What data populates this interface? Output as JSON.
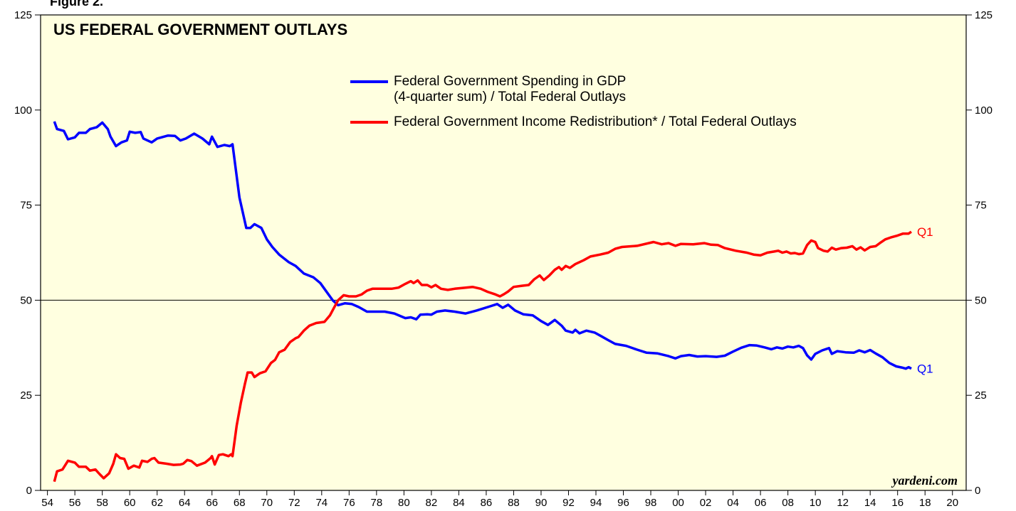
{
  "chart_data": {
    "type": "line",
    "figure_label": "Figure 2.",
    "title": "US FEDERAL GOVERNMENT OUTLAYS",
    "source": "yardeni.com",
    "xlim": [
      1953.5,
      2021
    ],
    "ylim": [
      0,
      125
    ],
    "yticks": [
      0,
      25,
      50,
      75,
      100,
      125
    ],
    "xticks": [
      {
        "value": 1954,
        "label": "54"
      },
      {
        "value": 1956,
        "label": "56"
      },
      {
        "value": 1958,
        "label": "58"
      },
      {
        "value": 1960,
        "label": "60"
      },
      {
        "value": 1962,
        "label": "62"
      },
      {
        "value": 1964,
        "label": "64"
      },
      {
        "value": 1966,
        "label": "66"
      },
      {
        "value": 1968,
        "label": "68"
      },
      {
        "value": 1970,
        "label": "70"
      },
      {
        "value": 1972,
        "label": "72"
      },
      {
        "value": 1974,
        "label": "74"
      },
      {
        "value": 1976,
        "label": "76"
      },
      {
        "value": 1978,
        "label": "78"
      },
      {
        "value": 1980,
        "label": "80"
      },
      {
        "value": 1982,
        "label": "82"
      },
      {
        "value": 1984,
        "label": "84"
      },
      {
        "value": 1986,
        "label": "86"
      },
      {
        "value": 1988,
        "label": "88"
      },
      {
        "value": 1990,
        "label": "90"
      },
      {
        "value": 1992,
        "label": "92"
      },
      {
        "value": 1994,
        "label": "94"
      },
      {
        "value": 1996,
        "label": "96"
      },
      {
        "value": 1998,
        "label": "98"
      },
      {
        "value": 2000,
        "label": "00"
      },
      {
        "value": 2002,
        "label": "02"
      },
      {
        "value": 2004,
        "label": "04"
      },
      {
        "value": 2006,
        "label": "06"
      },
      {
        "value": 2008,
        "label": "08"
      },
      {
        "value": 2010,
        "label": "10"
      },
      {
        "value": 2012,
        "label": "12"
      },
      {
        "value": 2014,
        "label": "14"
      },
      {
        "value": 2016,
        "label": "16"
      },
      {
        "value": 2018,
        "label": "18"
      },
      {
        "value": 2020,
        "label": "20"
      }
    ],
    "reference_line": 50,
    "background": "#ffffe0",
    "series": [
      {
        "name": "Federal Government Spending in GDP\n(4-quarter sum) / Total Federal Outlays",
        "color": "#0000ff",
        "end_label": "Q1",
        "x": [
          1954.5,
          1954.7,
          1955.2,
          1955.5,
          1956,
          1956.3,
          1956.8,
          1957.1,
          1957.6,
          1958,
          1958.4,
          1958.6,
          1959,
          1959.4,
          1959.8,
          1960,
          1960.4,
          1960.8,
          1961,
          1961.6,
          1962,
          1962.8,
          1963.3,
          1963.7,
          1964.1,
          1964.7,
          1965.3,
          1965.8,
          1966,
          1966.4,
          1966.9,
          1967.3,
          1967.5,
          1968,
          1968.5,
          1968.8,
          1969.1,
          1969.6,
          1970,
          1970.4,
          1970.9,
          1971.6,
          1972.1,
          1972.7,
          1973.4,
          1973.9,
          1974.4,
          1974.8,
          1975.2,
          1975.7,
          1976.2,
          1976.7,
          1977.3,
          1977.8,
          1978.6,
          1979.3,
          1980.1,
          1980.5,
          1980.9,
          1981.2,
          1981.7,
          1982,
          1982.4,
          1983,
          1983.7,
          1984.5,
          1985.3,
          1986.2,
          1986.8,
          1987.2,
          1987.6,
          1988.1,
          1988.7,
          1989.4,
          1990,
          1990.5,
          1991,
          1991.5,
          1991.8,
          1992.3,
          1992.5,
          1992.8,
          1993.3,
          1993.9,
          1994.4,
          1994.9,
          1995.4,
          1996.2,
          1997,
          1997.7,
          1998.5,
          1999.3,
          1999.8,
          2000.2,
          2000.8,
          2001.4,
          2002,
          2002.8,
          2003.4,
          2004,
          2004.6,
          2005.2,
          2005.7,
          2006.3,
          2006.8,
          2007.2,
          2007.6,
          2008,
          2008.4,
          2008.8,
          2009.1,
          2009.4,
          2009.7,
          2010,
          2010.5,
          2011,
          2011.2,
          2011.6,
          2012.2,
          2012.8,
          2013.2,
          2013.6,
          2014,
          2014.4,
          2014.9,
          2015.4,
          2015.9,
          2016.3,
          2016.6,
          2016.8,
          2017
        ],
        "values": [
          97,
          95,
          94.5,
          92.3,
          92.8,
          94,
          94,
          95,
          95.5,
          96.7,
          95,
          93,
          90.5,
          91.5,
          92,
          94.3,
          94,
          94.2,
          92.5,
          91.5,
          92.5,
          93.3,
          93.2,
          92,
          92.5,
          93.8,
          92.5,
          91,
          93,
          90.3,
          90.8,
          90.5,
          91,
          77,
          69,
          69,
          70,
          69,
          66,
          64,
          62,
          60,
          59,
          57,
          56,
          54.5,
          52,
          50,
          48.7,
          49.2,
          49,
          48.2,
          47,
          47,
          47,
          46.5,
          45.3,
          45.5,
          45,
          46.2,
          46.3,
          46.2,
          47,
          47.3,
          47,
          46.5,
          47.3,
          48.3,
          49,
          48,
          48.8,
          47.3,
          46.3,
          46,
          44.5,
          43.5,
          44.8,
          43.3,
          42,
          41.5,
          42.2,
          41.3,
          42,
          41.5,
          40.5,
          39.5,
          38.5,
          38,
          37,
          36.2,
          36,
          35.3,
          34.7,
          35.3,
          35.6,
          35.2,
          35.3,
          35.1,
          35.4,
          36.5,
          37.5,
          38.2,
          38.1,
          37.6,
          37.1,
          37.6,
          37.3,
          37.8,
          37.6,
          38,
          37.4,
          35.5,
          34.4,
          35.9,
          36.8,
          37.4,
          35.9,
          36.6,
          36.3,
          36.2,
          36.8,
          36.3,
          36.9,
          36,
          35,
          33.5,
          32.6,
          32.3,
          32,
          32.4,
          32
        ]
      },
      {
        "name": "Federal Government Income Redistribution* / Total Federal Outlays",
        "color": "#ff0000",
        "end_label": "Q1",
        "x": [
          1954.5,
          1954.7,
          1955.1,
          1955.5,
          1956,
          1956.3,
          1956.8,
          1957.1,
          1957.5,
          1957.8,
          1958.1,
          1958.5,
          1958.8,
          1959,
          1959.3,
          1959.6,
          1959.9,
          1960.3,
          1960.7,
          1960.9,
          1961.3,
          1961.6,
          1961.8,
          1962.1,
          1962.7,
          1963.2,
          1963.7,
          1963.9,
          1964.2,
          1964.5,
          1964.9,
          1965.5,
          1965.9,
          1966,
          1966.2,
          1966.5,
          1966.8,
          1967.2,
          1967.4,
          1967.5,
          1967.8,
          1968.1,
          1968.4,
          1968.6,
          1968.9,
          1969.1,
          1969.5,
          1969.9,
          1970.3,
          1970.6,
          1970.9,
          1971.3,
          1971.7,
          1972.1,
          1972.3,
          1972.7,
          1973.1,
          1973.6,
          1974.2,
          1974.6,
          1974.9,
          1975.2,
          1975.6,
          1976,
          1976.5,
          1976.9,
          1977.3,
          1977.7,
          1978.3,
          1979.1,
          1979.6,
          1980.1,
          1980.5,
          1980.7,
          1981,
          1981.3,
          1981.7,
          1982,
          1982.3,
          1982.7,
          1983.2,
          1983.7,
          1984.5,
          1985,
          1985.6,
          1986.1,
          1986.6,
          1987,
          1987.3,
          1987.6,
          1988,
          1988.6,
          1989.1,
          1989.5,
          1989.9,
          1990.2,
          1990.6,
          1991,
          1991.3,
          1991.5,
          1991.8,
          1992.1,
          1992.5,
          1993.1,
          1993.6,
          1994.3,
          1994.9,
          1995.4,
          1995.9,
          1997,
          1998.2,
          1998.8,
          1999.3,
          1999.8,
          2000.2,
          2001.1,
          2001.9,
          2002.4,
          2002.9,
          2003.4,
          2004.2,
          2005,
          2005.5,
          2006,
          2006.5,
          2007,
          2007.3,
          2007.6,
          2007.9,
          2008.2,
          2008.5,
          2008.8,
          2009.1,
          2009.4,
          2009.7,
          2010,
          2010.2,
          2010.6,
          2010.9,
          2011.2,
          2011.5,
          2011.9,
          2012.3,
          2012.7,
          2013,
          2013.3,
          2013.6,
          2014,
          2014.4,
          2014.7,
          2015.1,
          2015.5,
          2016,
          2016.4,
          2016.8,
          2017
        ],
        "values": [
          2.3,
          5,
          5.5,
          7.8,
          7.3,
          6.2,
          6.2,
          5.2,
          5.5,
          4.3,
          3.2,
          4.5,
          7,
          9.5,
          8.5,
          8.3,
          5.7,
          6.5,
          6,
          7.8,
          7.5,
          8.3,
          8.5,
          7.3,
          7,
          6.7,
          6.8,
          7,
          8,
          7.7,
          6.5,
          7.3,
          8.5,
          9,
          6.8,
          9.3,
          9.5,
          9,
          9.5,
          9,
          17,
          23,
          28,
          31,
          31,
          29.8,
          30.8,
          31.3,
          33.5,
          34.3,
          36.3,
          37,
          39,
          40,
          40.3,
          42,
          43.3,
          44,
          44.3,
          46,
          48,
          50,
          51.3,
          51,
          51,
          51.5,
          52.5,
          53,
          53,
          53,
          53.3,
          54.3,
          55,
          54.5,
          55.2,
          54,
          54,
          53.4,
          54,
          53,
          52.7,
          53,
          53.3,
          53.5,
          53,
          52.2,
          51.6,
          51,
          51.6,
          52.3,
          53.5,
          53.8,
          54,
          55.5,
          56.5,
          55.3,
          56.5,
          58,
          58.7,
          58,
          59,
          58.5,
          59.5,
          60.5,
          61.5,
          62,
          62.5,
          63.5,
          64,
          64.3,
          65.3,
          64.7,
          65,
          64.3,
          64.8,
          64.7,
          65,
          64.6,
          64.5,
          63.7,
          63,
          62.5,
          62,
          61.8,
          62.5,
          62.8,
          63,
          62.5,
          62.8,
          62.3,
          62.4,
          62.1,
          62.3,
          64.5,
          65.7,
          65.3,
          63.7,
          63,
          62.8,
          63.8,
          63.3,
          63.7,
          63.8,
          64.2,
          63.3,
          63.9,
          63.1,
          64,
          64.2,
          65,
          66,
          66.5,
          67,
          67.5,
          67.5,
          68
        ]
      }
    ]
  }
}
